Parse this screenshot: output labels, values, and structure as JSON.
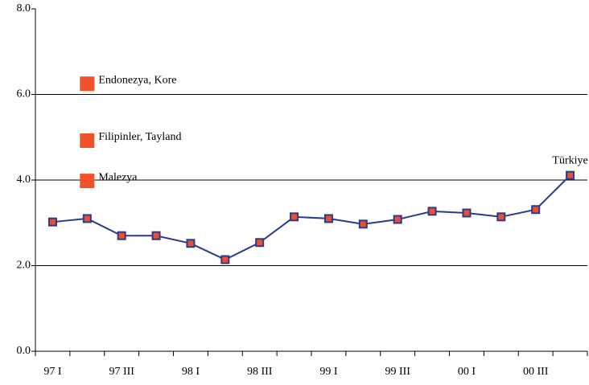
{
  "chart_data": {
    "type": "line",
    "categories": [
      "97 I",
      null,
      "97 III",
      null,
      "98 I",
      null,
      "98 III",
      null,
      "99 I",
      null,
      "99 III",
      null,
      "00 I",
      null,
      "00 III",
      null
    ],
    "series": [
      {
        "name": "Türkiye",
        "color": "#2b3a8f",
        "marker_color": "#e8502e",
        "values": [
          3.02,
          3.1,
          2.7,
          2.7,
          2.52,
          2.14,
          2.54,
          3.14,
          3.1,
          2.97,
          3.08,
          3.27,
          3.23,
          3.14,
          3.31,
          4.11
        ]
      }
    ],
    "points": [
      {
        "name": "Endonezya, Kore",
        "value": 6.25
      },
      {
        "name": "Filipinler, Tayland",
        "value": 4.92
      },
      {
        "name": "Malezya",
        "value": 3.98
      }
    ],
    "points_color": "#f0502a",
    "ylim": [
      0,
      8
    ],
    "yticks": [
      {
        "value": 0,
        "label": "0.0"
      },
      {
        "value": 2,
        "label": "2.0"
      },
      {
        "value": 4,
        "label": "4.0"
      },
      {
        "value": 6,
        "label": "6.0"
      },
      {
        "value": 8,
        "label": "8.0"
      }
    ],
    "grid": true
  }
}
